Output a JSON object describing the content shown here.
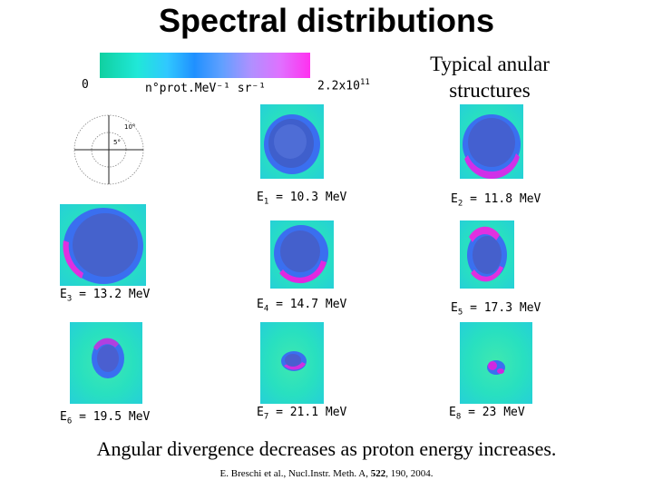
{
  "title": "Spectral distributions",
  "colorbar": {
    "min_label": "0",
    "unit_label": "n°prot.MeV⁻¹ sr⁻¹",
    "max_label_base": "2.2x10",
    "max_label_exp": "11"
  },
  "polar_inset": {
    "label_a": "10°",
    "label_b": "5°"
  },
  "heading_right": [
    "Typical anular",
    "structures"
  ],
  "panels": [
    {
      "id": "E1",
      "prefix": "E",
      "sub": "1",
      "value": " = 10.3 MeV"
    },
    {
      "id": "E2",
      "prefix": "E",
      "sub": "2",
      "value": " = 11.8 MeV"
    },
    {
      "id": "E3",
      "prefix": "E",
      "sub": "3",
      "value": " = 13.2 MeV"
    },
    {
      "id": "E4",
      "prefix": "E",
      "sub": "4",
      "value": " = 14.7 MeV"
    },
    {
      "id": "E5",
      "prefix": "E",
      "sub": "5",
      "value": " = 17.3 MeV"
    },
    {
      "id": "E6",
      "prefix": "E",
      "sub": "6",
      "value": " = 19.5 MeV"
    },
    {
      "id": "E7",
      "prefix": "E",
      "sub": "7",
      "value": " = 21.1 MeV"
    },
    {
      "id": "E8",
      "prefix": "E",
      "sub": "8",
      "value": " = 23 MeV"
    }
  ],
  "footer": "Angular divergence decreases as proton energy increases.",
  "citation": {
    "authors": "E. Breschi et al., Nucl.Instr. Meth. A, ",
    "volume": "522",
    "rest": ", 190, 2004."
  }
}
